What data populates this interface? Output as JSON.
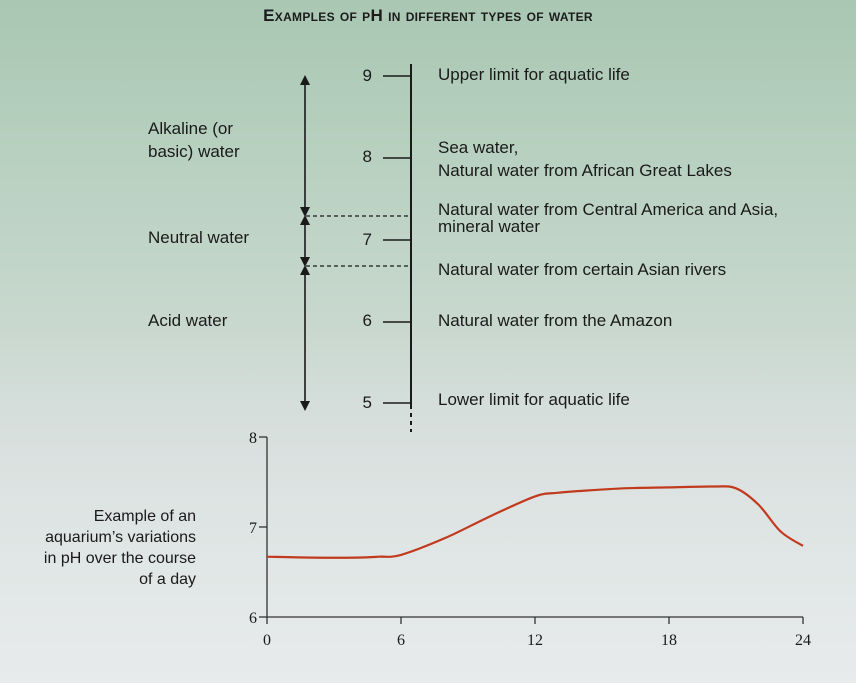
{
  "title": "Examples of pH in different types of water",
  "scale": {
    "ticks": [
      {
        "label": "9",
        "desc": [
          "Upper limit for aquatic life"
        ]
      },
      {
        "label": "8",
        "desc": [
          "Sea water,",
          "Natural water from African Great Lakes"
        ]
      },
      {
        "label": "7",
        "desc": [
          "Natural water from Central America and Asia,",
          "mineral water"
        ]
      },
      {
        "label": "6",
        "desc": [
          "Natural water from the Amazon"
        ]
      },
      {
        "label": "5",
        "desc": [
          "Lower limit for aquatic life"
        ]
      }
    ],
    "asian_rivers": "Natural water from certain Asian rivers",
    "zones": {
      "alkaline": [
        "Alkaline (or",
        "basic) water"
      ],
      "neutral": "Neutral water",
      "acid": "Acid water"
    }
  },
  "chart_legend": [
    "Example of an",
    "aquarium’s variations",
    "in pH over the course",
    "of a day"
  ],
  "chart_data": {
    "type": "line",
    "title": "",
    "xlabel": "",
    "ylabel": "",
    "xlim": [
      0,
      24
    ],
    "ylim": [
      6,
      8
    ],
    "x_ticks": [
      "0",
      "6",
      "12",
      "18",
      "24"
    ],
    "y_ticks": [
      "6",
      "7",
      "8"
    ],
    "grid": false,
    "series": [
      {
        "x": [
          0,
          2,
          4,
          5,
          6,
          8,
          10,
          12,
          13,
          14,
          16,
          18,
          20,
          21,
          22,
          23,
          24
        ],
        "y": [
          6.67,
          6.66,
          6.66,
          6.67,
          6.69,
          6.88,
          7.12,
          7.34,
          7.38,
          7.4,
          7.43,
          7.44,
          7.45,
          7.43,
          7.25,
          6.95,
          6.79
        ]
      }
    ],
    "line_color": "#c23a1e"
  }
}
